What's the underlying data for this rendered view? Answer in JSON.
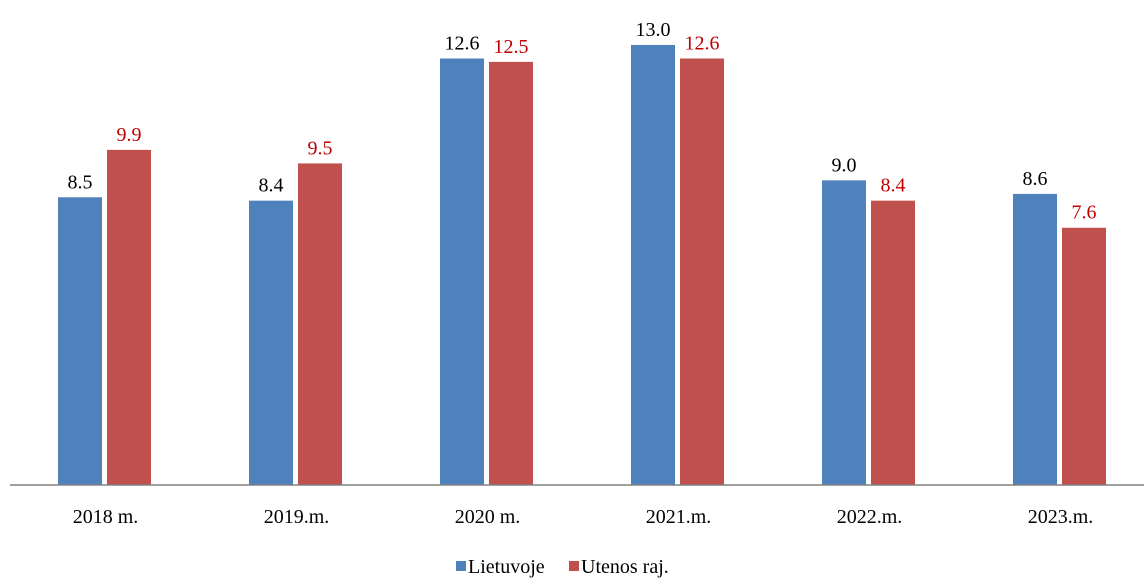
{
  "chart_data": {
    "type": "bar",
    "categories": [
      "2018 m.",
      "2019.m.",
      "2020 m.",
      "2021.m.",
      "2022.m.",
      "2023.m."
    ],
    "series": [
      {
        "name": "Lietuvoje",
        "values": [
          8.5,
          8.4,
          12.6,
          13.0,
          9.0,
          8.6
        ],
        "color": "#4f81bd",
        "label_color": "#000000"
      },
      {
        "name": "Utenos raj.",
        "values": [
          9.9,
          9.5,
          12.5,
          12.6,
          8.4,
          7.6
        ],
        "color": "#c0504d",
        "label_color": "#c00000"
      }
    ],
    "value_labels": [
      [
        "8.5",
        "8.4",
        "12.6",
        "13.0",
        "9.0",
        "8.6"
      ],
      [
        "9.9",
        "9.5",
        "12.5",
        "12.6",
        "8.4",
        "7.6"
      ]
    ],
    "title": "",
    "xlabel": "",
    "ylabel": "",
    "ylim": [
      0,
      14
    ],
    "grid": false,
    "legend_position": "bottom",
    "axis_color": "#808080"
  }
}
